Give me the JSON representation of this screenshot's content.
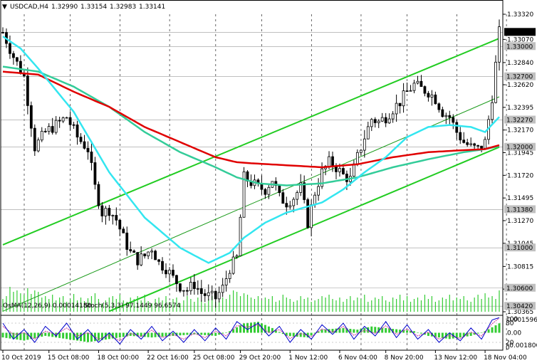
{
  "header": {
    "symbol": "USDCAD,H4",
    "open": "1.32990",
    "high": "1.33154",
    "low": "1.32983",
    "close": "1.33141"
  },
  "indicator_header": {
    "osma": "OsMA(12,26,9) 0.00014180",
    "stoch": "Stoch(5,3,3) 97.1449 96.6574"
  },
  "colors": {
    "bull_candle": "#000000",
    "bear_candle": "#000000",
    "ma_red": "#e00000",
    "ma_green": "#33cc99",
    "ma_cyan": "#33e6f0",
    "channel_green": "#22cc22",
    "channel_mid": "#1a9a1a",
    "histogram": "#33cc33",
    "osma_hist": "#33cc33",
    "stoch_main": "#0000cc",
    "stoch_signal": "#cc3399",
    "grid": "#000000",
    "volume": "#33cc33"
  },
  "chart_data": {
    "type": "candlestick",
    "symbol": "USDCAD",
    "timeframe": "H4",
    "ylim": [
      1.30365,
      1.3332
    ],
    "price_ticks": [
      "1.33320",
      "1.33070",
      "1.32840",
      "1.32620",
      "1.32395",
      "1.32170",
      "1.31945",
      "1.31720",
      "1.31495",
      "1.31270",
      "1.31045",
      "1.30815",
      "1.30590",
      "1.30365"
    ],
    "level_labels": [
      {
        "label": "1.33141",
        "value": 1.33141,
        "current": true
      },
      {
        "label": "1.33000",
        "value": 1.33
      },
      {
        "label": "1.32700",
        "value": 1.327
      },
      {
        "label": "1.32270",
        "value": 1.3227
      },
      {
        "label": "1.32000",
        "value": 1.32
      },
      {
        "label": "1.31380",
        "value": 1.3138
      },
      {
        "label": "1.31000",
        "value": 1.31
      },
      {
        "label": "1.30600",
        "value": 1.306
      },
      {
        "label": "1.30420",
        "value": 1.3042
      }
    ],
    "date_ticks": [
      "10 Oct 2019",
      "15 Oct 08:00",
      "18 Oct 00:00",
      "22 Oct 16:00",
      "25 Oct 08:00",
      "29 Oct 20:00",
      "1 Nov 12:00",
      "6 Nov 04:00",
      "8 Nov 20:00",
      "13 Nov 12:00",
      "18 Nov 04:00"
    ],
    "date_tick_bars": [
      0,
      13,
      27,
      41,
      54,
      67,
      81,
      95,
      108,
      122,
      136
    ],
    "bars": 141,
    "closes_keypoints": [
      [
        0,
        1.3314
      ],
      [
        3,
        1.329
      ],
      [
        6,
        1.327
      ],
      [
        9,
        1.32
      ],
      [
        12,
        1.3215
      ],
      [
        15,
        1.3222
      ],
      [
        18,
        1.323
      ],
      [
        21,
        1.321
      ],
      [
        24,
        1.3198
      ],
      [
        26,
        1.316
      ],
      [
        28,
        1.3135
      ],
      [
        30,
        1.3138
      ],
      [
        32,
        1.3128
      ],
      [
        34,
        1.311
      ],
      [
        36,
        1.3095
      ],
      [
        38,
        1.3088
      ],
      [
        40,
        1.3092
      ],
      [
        42,
        1.31
      ],
      [
        44,
        1.3085
      ],
      [
        46,
        1.308
      ],
      [
        48,
        1.307
      ],
      [
        50,
        1.3062
      ],
      [
        52,
        1.3058
      ],
      [
        54,
        1.3064
      ],
      [
        56,
        1.3055
      ],
      [
        58,
        1.3052
      ],
      [
        60,
        1.305
      ],
      [
        62,
        1.306
      ],
      [
        64,
        1.308
      ],
      [
        66,
        1.309
      ],
      [
        68,
        1.317
      ],
      [
        70,
        1.3165
      ],
      [
        72,
        1.316
      ],
      [
        74,
        1.3158
      ],
      [
        76,
        1.3168
      ],
      [
        78,
        1.315
      ],
      [
        80,
        1.3145
      ],
      [
        82,
        1.315
      ],
      [
        84,
        1.316
      ],
      [
        86,
        1.3125
      ],
      [
        88,
        1.3155
      ],
      [
        90,
        1.3175
      ],
      [
        92,
        1.3185
      ],
      [
        94,
        1.318
      ],
      [
        96,
        1.3172
      ],
      [
        98,
        1.3168
      ],
      [
        100,
        1.319
      ],
      [
        102,
        1.321
      ],
      [
        104,
        1.3228
      ],
      [
        106,
        1.3225
      ],
      [
        108,
        1.323
      ],
      [
        110,
        1.3238
      ],
      [
        112,
        1.3245
      ],
      [
        114,
        1.3255
      ],
      [
        116,
        1.3262
      ],
      [
        118,
        1.3258
      ],
      [
        120,
        1.3255
      ],
      [
        122,
        1.3248
      ],
      [
        124,
        1.3235
      ],
      [
        126,
        1.323
      ],
      [
        128,
        1.3215
      ],
      [
        130,
        1.3205
      ],
      [
        132,
        1.32
      ],
      [
        134,
        1.3198
      ],
      [
        136,
        1.3205
      ],
      [
        138,
        1.325
      ],
      [
        140,
        1.3314
      ]
    ],
    "ma_red_keypoints": [
      [
        0,
        1.3275
      ],
      [
        10,
        1.3272
      ],
      [
        20,
        1.3255
      ],
      [
        30,
        1.324
      ],
      [
        40,
        1.322
      ],
      [
        50,
        1.3205
      ],
      [
        60,
        1.319
      ],
      [
        66,
        1.3185
      ],
      [
        70,
        1.3184
      ],
      [
        80,
        1.3182
      ],
      [
        90,
        1.318
      ],
      [
        100,
        1.3183
      ],
      [
        110,
        1.319
      ],
      [
        120,
        1.3195
      ],
      [
        130,
        1.3197
      ],
      [
        136,
        1.3198
      ],
      [
        140,
        1.3202
      ]
    ],
    "ma_green_keypoints": [
      [
        0,
        1.328
      ],
      [
        10,
        1.3275
      ],
      [
        20,
        1.326
      ],
      [
        30,
        1.324
      ],
      [
        40,
        1.3215
      ],
      [
        50,
        1.3195
      ],
      [
        60,
        1.318
      ],
      [
        66,
        1.317
      ],
      [
        72,
        1.3164
      ],
      [
        80,
        1.3162
      ],
      [
        90,
        1.3164
      ],
      [
        100,
        1.317
      ],
      [
        110,
        1.318
      ],
      [
        120,
        1.3188
      ],
      [
        130,
        1.3195
      ],
      [
        136,
        1.3198
      ],
      [
        140,
        1.3201
      ]
    ],
    "ma_cyan_keypoints": [
      [
        0,
        1.331
      ],
      [
        5,
        1.3298
      ],
      [
        10,
        1.3278
      ],
      [
        20,
        1.3235
      ],
      [
        30,
        1.3175
      ],
      [
        40,
        1.313
      ],
      [
        50,
        1.31
      ],
      [
        58,
        1.3085
      ],
      [
        64,
        1.3095
      ],
      [
        68,
        1.311
      ],
      [
        74,
        1.3125
      ],
      [
        80,
        1.3135
      ],
      [
        90,
        1.3145
      ],
      [
        96,
        1.3158
      ],
      [
        102,
        1.3175
      ],
      [
        108,
        1.319
      ],
      [
        114,
        1.321
      ],
      [
        120,
        1.322
      ],
      [
        126,
        1.3222
      ],
      [
        132,
        1.322
      ],
      [
        136,
        1.3215
      ],
      [
        140,
        1.323
      ]
    ],
    "channel": {
      "upper": [
        [
          0,
          1.3103
        ],
        [
          140,
          1.3308
        ]
      ],
      "lower": [
        [
          30,
          1.3037
        ],
        [
          140,
          1.32
        ]
      ],
      "middle": [
        [
          0,
          1.3037
        ],
        [
          140,
          1.325
        ]
      ]
    },
    "volume_heights": [
      18,
      22,
      35,
      28,
      30,
      26,
      24,
      33,
      25,
      30,
      28,
      20,
      22,
      18,
      24,
      16,
      20,
      22,
      14,
      18,
      25,
      16,
      20,
      15,
      19,
      22,
      26,
      18,
      12,
      16,
      20,
      22,
      18,
      24,
      16,
      14,
      20,
      18,
      22,
      16,
      24,
      15,
      12,
      18,
      20,
      16,
      22,
      14,
      18,
      20,
      12,
      16,
      22,
      18,
      14,
      20,
      16,
      12,
      18,
      22,
      14,
      16,
      20,
      18,
      24,
      30,
      28,
      22,
      26,
      24,
      20,
      18,
      22,
      16,
      20,
      18,
      22,
      14,
      16,
      24,
      20,
      18,
      14,
      16,
      22,
      18,
      20,
      14,
      16,
      18,
      22,
      20,
      24,
      18,
      16,
      20,
      14,
      18,
      22,
      16,
      20,
      18,
      24,
      14,
      16,
      20,
      18,
      22,
      16,
      14,
      20,
      18,
      24,
      16,
      22,
      14,
      18,
      20,
      16,
      24,
      18,
      22,
      14,
      16,
      20,
      18,
      24,
      16,
      20,
      18,
      22,
      16,
      14,
      20,
      24,
      18,
      26,
      20,
      22,
      18,
      30
    ],
    "osma_hist_keypoints": [
      [
        0,
        -3
      ],
      [
        6,
        -5
      ],
      [
        12,
        -2
      ],
      [
        18,
        -4
      ],
      [
        24,
        -6
      ],
      [
        30,
        -4
      ],
      [
        36,
        -2
      ],
      [
        42,
        -3
      ],
      [
        48,
        -2
      ],
      [
        54,
        -1
      ],
      [
        60,
        -2
      ],
      [
        64,
        1
      ],
      [
        68,
        6
      ],
      [
        72,
        7
      ],
      [
        76,
        3
      ],
      [
        80,
        -2
      ],
      [
        86,
        -3
      ],
      [
        90,
        2
      ],
      [
        96,
        3
      ],
      [
        100,
        2
      ],
      [
        104,
        4
      ],
      [
        108,
        3
      ],
      [
        112,
        2
      ],
      [
        116,
        1
      ],
      [
        120,
        -2
      ],
      [
        126,
        -4
      ],
      [
        132,
        -2
      ],
      [
        136,
        1
      ],
      [
        140,
        6
      ]
    ],
    "stoch_main_keypoints": [
      [
        0,
        80
      ],
      [
        3,
        30
      ],
      [
        6,
        60
      ],
      [
        9,
        20
      ],
      [
        12,
        70
      ],
      [
        15,
        40
      ],
      [
        18,
        80
      ],
      [
        21,
        30
      ],
      [
        24,
        60
      ],
      [
        27,
        20
      ],
      [
        30,
        50
      ],
      [
        33,
        15
      ],
      [
        36,
        60
      ],
      [
        39,
        30
      ],
      [
        42,
        70
      ],
      [
        45,
        25
      ],
      [
        48,
        55
      ],
      [
        51,
        20
      ],
      [
        54,
        60
      ],
      [
        57,
        25
      ],
      [
        60,
        65
      ],
      [
        63,
        30
      ],
      [
        66,
        85
      ],
      [
        69,
        60
      ],
      [
        72,
        80
      ],
      [
        75,
        40
      ],
      [
        78,
        70
      ],
      [
        81,
        20
      ],
      [
        84,
        60
      ],
      [
        87,
        30
      ],
      [
        90,
        75
      ],
      [
        93,
        45
      ],
      [
        96,
        80
      ],
      [
        99,
        30
      ],
      [
        102,
        70
      ],
      [
        105,
        40
      ],
      [
        108,
        85
      ],
      [
        111,
        35
      ],
      [
        114,
        75
      ],
      [
        117,
        30
      ],
      [
        120,
        60
      ],
      [
        123,
        20
      ],
      [
        126,
        50
      ],
      [
        129,
        25
      ],
      [
        132,
        65
      ],
      [
        135,
        30
      ],
      [
        138,
        90
      ],
      [
        140,
        97
      ]
    ],
    "stoch_signal_keypoints": [
      [
        0,
        70
      ],
      [
        3,
        45
      ],
      [
        6,
        50
      ],
      [
        9,
        30
      ],
      [
        12,
        55
      ],
      [
        15,
        45
      ],
      [
        18,
        65
      ],
      [
        21,
        40
      ],
      [
        24,
        50
      ],
      [
        27,
        30
      ],
      [
        30,
        42
      ],
      [
        33,
        25
      ],
      [
        36,
        48
      ],
      [
        39,
        38
      ],
      [
        42,
        58
      ],
      [
        45,
        35
      ],
      [
        48,
        45
      ],
      [
        51,
        30
      ],
      [
        54,
        48
      ],
      [
        57,
        35
      ],
      [
        60,
        55
      ],
      [
        63,
        40
      ],
      [
        66,
        72
      ],
      [
        69,
        68
      ],
      [
        72,
        74
      ],
      [
        75,
        50
      ],
      [
        78,
        60
      ],
      [
        81,
        32
      ],
      [
        84,
        48
      ],
      [
        87,
        38
      ],
      [
        90,
        62
      ],
      [
        93,
        52
      ],
      [
        96,
        70
      ],
      [
        99,
        42
      ],
      [
        102,
        58
      ],
      [
        105,
        48
      ],
      [
        108,
        72
      ],
      [
        111,
        45
      ],
      [
        114,
        62
      ],
      [
        117,
        40
      ],
      [
        120,
        52
      ],
      [
        123,
        30
      ],
      [
        126,
        42
      ],
      [
        129,
        32
      ],
      [
        132,
        52
      ],
      [
        135,
        40
      ],
      [
        138,
        78
      ],
      [
        140,
        96
      ]
    ],
    "osma_axis_ticks": [
      "0.001596",
      "0.00",
      "-0.001806"
    ],
    "stoch_axis_ticks": [
      "100",
      "80",
      "20",
      "0"
    ]
  }
}
